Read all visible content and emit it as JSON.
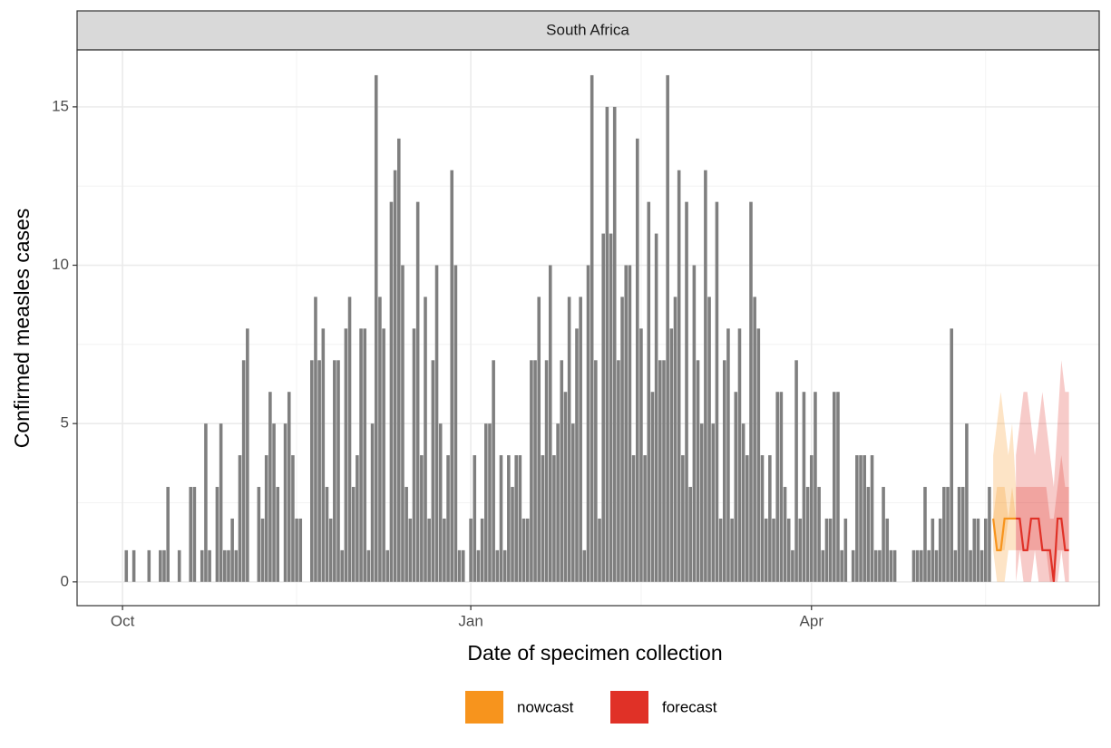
{
  "chart_data": {
    "type": "bar",
    "facet": "South Africa",
    "xlabel": "Date of specimen collection",
    "ylabel": "Confirmed measles cases",
    "xlim": [
      -12,
      258
    ],
    "ylim": [
      -0.75,
      16.8
    ],
    "xticks": [
      {
        "value": 0,
        "label": "Oct"
      },
      {
        "value": 92,
        "label": "Jan"
      },
      {
        "value": 182,
        "label": "Apr"
      }
    ],
    "yticks": [
      0,
      5,
      10,
      15
    ],
    "grid": true,
    "color": "#7f7f7f",
    "x": [
      0,
      1,
      2,
      3,
      4,
      5,
      6,
      7,
      8,
      9,
      10,
      11,
      12,
      13,
      14,
      15,
      16,
      17,
      18,
      19,
      20,
      21,
      22,
      23,
      24,
      25,
      26,
      27,
      28,
      29,
      30,
      31,
      32,
      33,
      34,
      35,
      36,
      37,
      38,
      39,
      40,
      41,
      42,
      43,
      44,
      45,
      46,
      47,
      48,
      49,
      50,
      51,
      52,
      53,
      54,
      55,
      56,
      57,
      58,
      59,
      60,
      61,
      62,
      63,
      64,
      65,
      66,
      67,
      68,
      69,
      70,
      71,
      72,
      73,
      74,
      75,
      76,
      77,
      78,
      79,
      80,
      81,
      82,
      83,
      84,
      85,
      86,
      87,
      88,
      89,
      90,
      91,
      92,
      93,
      94,
      95,
      96,
      97,
      98,
      99,
      100,
      101,
      102,
      103,
      104,
      105,
      106,
      107,
      108,
      109,
      110,
      111,
      112,
      113,
      114,
      115,
      116,
      117,
      118,
      119,
      120,
      121,
      122,
      123,
      124,
      125,
      126,
      127,
      128,
      129,
      130,
      131,
      132,
      133,
      134,
      135,
      136,
      137,
      138,
      139,
      140,
      141,
      142,
      143,
      144,
      145,
      146,
      147,
      148,
      149,
      150,
      151,
      152,
      153,
      154,
      155,
      156,
      157,
      158,
      159,
      160,
      161,
      162,
      163,
      164,
      165,
      166,
      167,
      168,
      169,
      170,
      171,
      172,
      173,
      174,
      175,
      176,
      177,
      178,
      179,
      180,
      181,
      182,
      183,
      184,
      185,
      186,
      187,
      188,
      189,
      190,
      191,
      192,
      193,
      194,
      195,
      196,
      197,
      198,
      199,
      200,
      201,
      202,
      203,
      204,
      205,
      206,
      207,
      208,
      209,
      210,
      211,
      212,
      213,
      214,
      215,
      216,
      217,
      218,
      219,
      220,
      221,
      222,
      223,
      224,
      225,
      226,
      227,
      228,
      229
    ],
    "values": [
      0,
      1,
      0,
      1,
      0,
      0,
      0,
      1,
      0,
      0,
      1,
      1,
      3,
      0,
      0,
      1,
      0,
      0,
      3,
      3,
      0,
      1,
      5,
      1,
      0,
      3,
      5,
      1,
      1,
      2,
      1,
      4,
      7,
      8,
      0,
      0,
      3,
      2,
      4,
      6,
      5,
      3,
      0,
      5,
      6,
      4,
      2,
      2,
      0,
      0,
      7,
      9,
      7,
      8,
      3,
      2,
      7,
      7,
      1,
      8,
      9,
      3,
      4,
      8,
      8,
      1,
      5,
      16,
      9,
      8,
      1,
      12,
      13,
      14,
      10,
      3,
      2,
      8,
      12,
      4,
      9,
      2,
      7,
      10,
      5,
      2,
      4,
      13,
      10,
      1,
      1,
      0,
      2,
      4,
      1,
      2,
      5,
      5,
      7,
      1,
      4,
      1,
      4,
      3,
      4,
      4,
      2,
      2,
      7,
      7,
      9,
      4,
      7,
      10,
      4,
      5,
      7,
      6,
      9,
      5,
      8,
      9,
      1,
      10,
      16,
      7,
      2,
      11,
      15,
      11,
      15,
      7,
      9,
      10,
      10,
      4,
      14,
      8,
      4,
      12,
      6,
      11,
      7,
      7,
      16,
      8,
      9,
      13,
      4,
      12,
      3,
      10,
      7,
      5,
      13,
      9,
      5,
      12,
      2,
      7,
      8,
      2,
      6,
      8,
      5,
      4,
      12,
      9,
      8,
      4,
      2,
      4,
      2,
      6,
      6,
      3,
      2,
      1,
      7,
      2,
      6,
      3,
      4,
      6,
      3,
      1,
      2,
      2,
      6,
      6,
      1,
      2,
      0,
      1,
      4,
      4,
      4,
      3,
      4,
      1,
      1,
      3,
      2,
      1,
      1,
      0,
      0,
      0,
      0,
      1,
      1,
      1,
      3,
      1,
      2,
      1,
      2,
      3,
      3,
      8,
      1,
      3,
      3,
      5,
      1,
      2,
      2,
      1,
      2,
      3
    ],
    "series": [
      {
        "name": "nowcast",
        "color": "#f7941d",
        "x": [
          230,
          231,
          232,
          233,
          234,
          235,
          236
        ],
        "values": [
          2,
          1,
          1,
          2,
          2,
          2,
          2
        ],
        "intervals": [
          {
            "lower": [
              1,
              0,
              0,
              0,
              1,
              1,
              1
            ],
            "upper": [
              4,
              5,
              6,
              5,
              4,
              5,
              3
            ]
          },
          {
            "lower": [
              2,
              1,
              1,
              1,
              2,
              2,
              2
            ],
            "upper": [
              2,
              3,
              3,
              3,
              2,
              3,
              2
            ]
          }
        ]
      },
      {
        "name": "forecast",
        "color": "#e03127",
        "x": [
          236,
          237,
          238,
          239,
          240,
          241,
          242,
          243,
          244,
          245,
          246,
          247,
          248,
          249,
          250
        ],
        "values": [
          2,
          2,
          1,
          1,
          2,
          2,
          2,
          1,
          1,
          1,
          0,
          2,
          2,
          1,
          1
        ],
        "intervals": [
          {
            "lower": [
              0,
              1,
              0,
              0,
              0,
              1,
              0,
              0,
              0,
              0,
              0,
              0,
              1,
              0,
              0
            ],
            "upper": [
              4,
              5,
              6,
              6,
              5,
              4,
              5,
              6,
              5,
              4,
              3,
              5,
              7,
              6,
              6
            ]
          },
          {
            "lower": [
              1,
              1,
              1,
              1,
              1,
              1,
              1,
              1,
              1,
              0,
              0,
              1,
              1,
              1,
              1
            ],
            "upper": [
              3,
              3,
              3,
              3,
              3,
              3,
              3,
              3,
              3,
              2,
              2,
              3,
              4,
              3,
              3
            ]
          }
        ]
      }
    ]
  }
}
